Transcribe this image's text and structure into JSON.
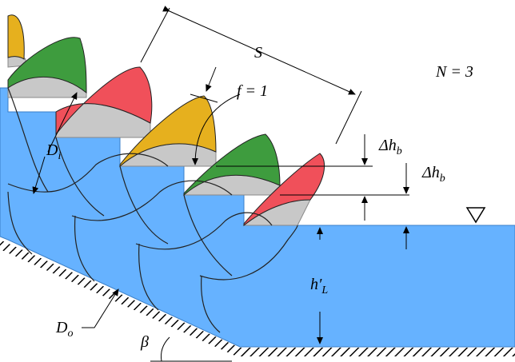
{
  "labels": {
    "spacing": "S",
    "drum_count": "N = 3",
    "fill_factor": "f = 1",
    "delta_hb_upper": "Δh",
    "delta_hb_upper_sub": "b",
    "delta_hb_lower": "Δh",
    "delta_hb_lower_sub": "b",
    "inner_diameter": "D",
    "inner_diameter_sub": "i",
    "outer_diameter": "D",
    "outer_diameter_sub": "o",
    "lower_water_depth": "h′",
    "lower_water_depth_sub": "L",
    "incline_angle": "β"
  },
  "colors": {
    "water": "#66B2FF",
    "water_edge": "#3A7FC8",
    "wedge_gray": "#C8C8C8",
    "yellow": "#E6B01E",
    "green": "#3E9C3E",
    "red": "#F0505A",
    "ink": "#000000"
  },
  "icons": {
    "water_surface_marker": "downward-triangle-icon"
  }
}
